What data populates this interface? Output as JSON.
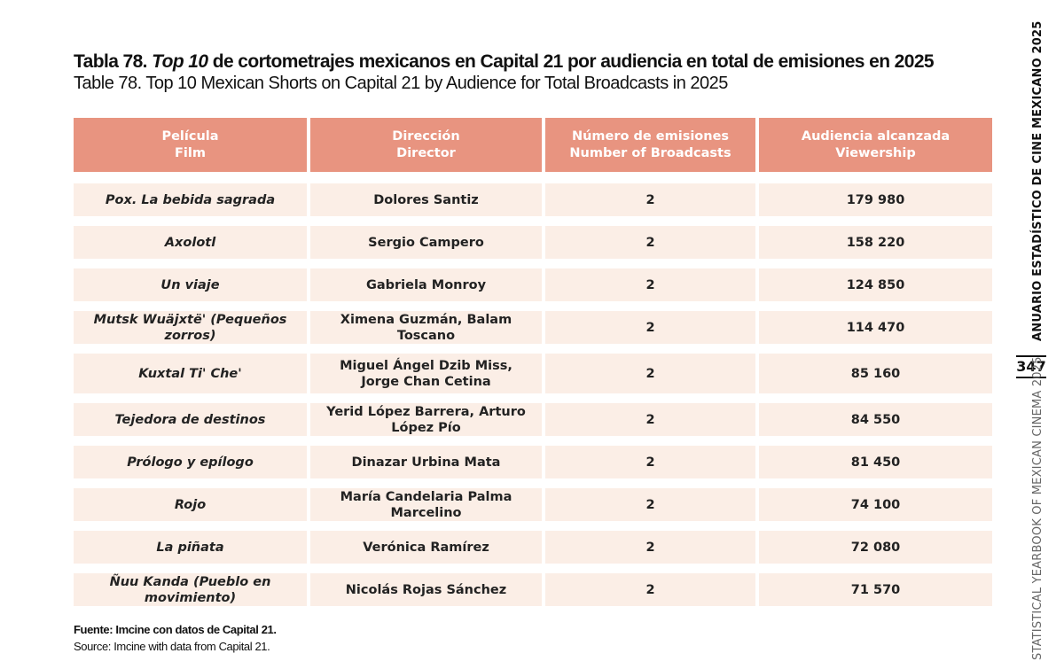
{
  "title": {
    "es_prefix": "Tabla 78.",
    "es_italic": "Top 10",
    "es_rest": "de cortometrajes mexicanos en Capital 21 por audiencia en total de emisiones en 2025",
    "en": "Table 78. Top 10 Mexican Shorts on Capital 21 by Audience for Total Broadcasts in 2025"
  },
  "table": {
    "headers": [
      {
        "es": "Película",
        "en": "Film"
      },
      {
        "es": "Dirección",
        "en": "Director"
      },
      {
        "es": "Número de emisiones",
        "en": "Number of Broadcasts"
      },
      {
        "es": "Audiencia alcanzada",
        "en": "Viewership"
      }
    ],
    "rows": [
      {
        "film": "Pox. La bebida sagrada",
        "director": [
          "Dolores Santiz"
        ],
        "broadcasts": "2",
        "viewership": "179 980"
      },
      {
        "film": "Axolotl",
        "director": [
          "Sergio Campero"
        ],
        "broadcasts": "2",
        "viewership": "158 220"
      },
      {
        "film": "Un viaje",
        "director": [
          "Gabriela Monroy"
        ],
        "broadcasts": "2",
        "viewership": "124 850"
      },
      {
        "film": "Mutsk Wuäjxtë' (Pequeños zorros)",
        "director": [
          "Ximena Guzmán, Balam Toscano"
        ],
        "broadcasts": "2",
        "viewership": "114 470"
      },
      {
        "film": "Kuxtal Ti' Che'",
        "director": [
          "Miguel Ángel Dzib Miss,",
          "Jorge Chan Cetina"
        ],
        "broadcasts": "2",
        "viewership": "85 160"
      },
      {
        "film": "Tejedora de destinos",
        "director": [
          "Yerid López Barrera, Arturo López Pío"
        ],
        "broadcasts": "2",
        "viewership": "84 550"
      },
      {
        "film": "Prólogo y epílogo",
        "director": [
          "Dinazar Urbina Mata"
        ],
        "broadcasts": "2",
        "viewership": "81 450"
      },
      {
        "film": "Rojo",
        "director": [
          "María Candelaria Palma Marcelino"
        ],
        "broadcasts": "2",
        "viewership": "74 100"
      },
      {
        "film": "La piñata",
        "director": [
          "Verónica Ramírez"
        ],
        "broadcasts": "2",
        "viewership": "72 080"
      },
      {
        "film": "Ñuu Kanda (Pueblo en movimiento)",
        "director": [
          "Nicolás Rojas Sánchez"
        ],
        "broadcasts": "2",
        "viewership": "71 570"
      }
    ]
  },
  "source": {
    "es": "Fuente: Imcine con datos de Capital 21.",
    "en": "Source: Imcine with data from Capital 21."
  },
  "sidebar": {
    "top_text": "ANUARIO ESTADÍSTICO DE CINE MEXICANO 2025",
    "page_number": "347",
    "bottom_text": "STATISTICAL YEARBOOK OF MEXICAN CINEMA 2025"
  },
  "colors": {
    "header_bg": "#e89480",
    "row_bg": "#fbeee6"
  }
}
